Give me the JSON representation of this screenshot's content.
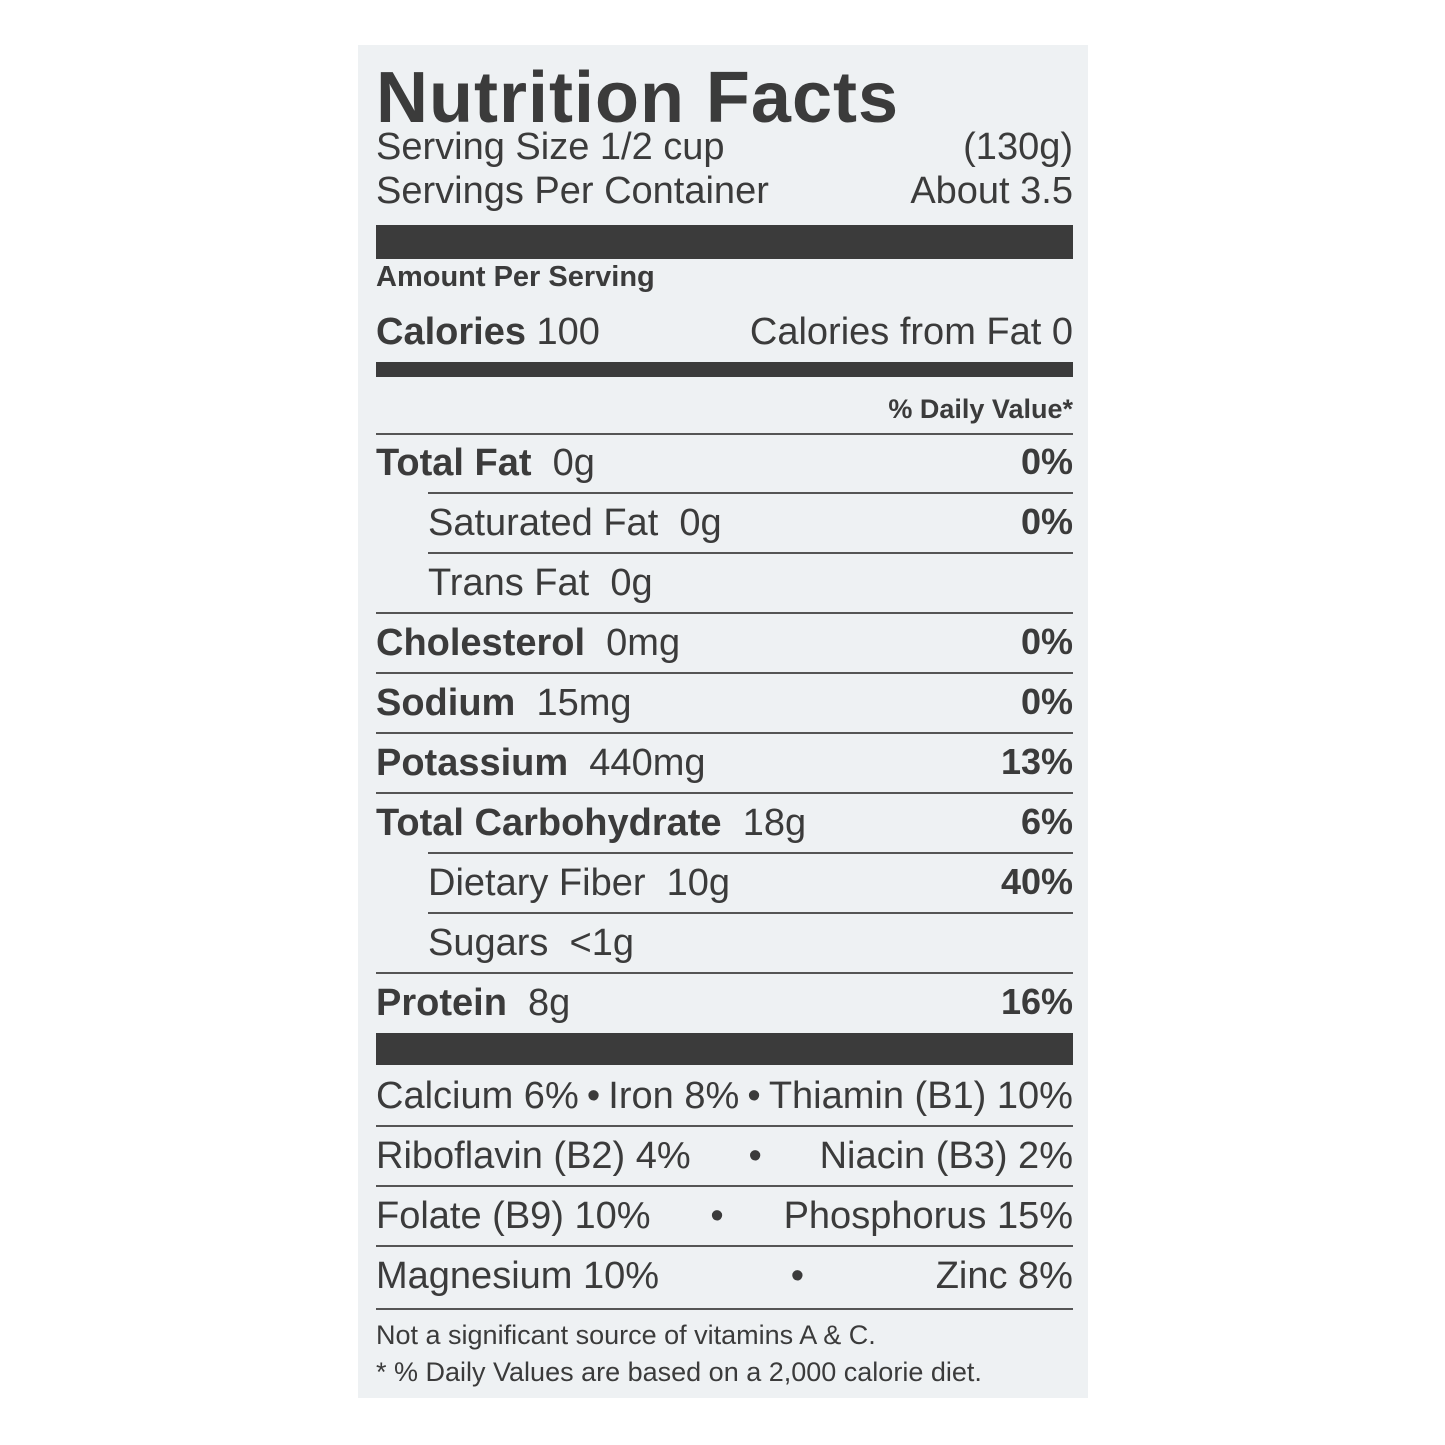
{
  "title": "Nutrition Facts",
  "serving": [
    {
      "label": "Serving Size 1/2 cup",
      "value": "(130g)"
    },
    {
      "label": "Servings Per Container",
      "value": "About 3.5"
    }
  ],
  "amount_per_serving": "Amount Per Serving",
  "calories": {
    "label": "Calories",
    "value": "100",
    "from_fat": "Calories from Fat 0"
  },
  "daily_value_header": "% Daily Value*",
  "nutrients": [
    {
      "name": "Total Fat",
      "amount": "0g",
      "dv": "0%"
    },
    {
      "name": "Saturated Fat",
      "amount": "0g",
      "dv": "0%",
      "sub": true
    },
    {
      "name": "Trans Fat",
      "amount": "0g",
      "sub": true
    },
    {
      "name": "Cholesterol",
      "amount": "0mg",
      "dv": "0%"
    },
    {
      "name": "Sodium",
      "amount": "15mg",
      "dv": "0%"
    },
    {
      "name": "Potassium",
      "amount": "440mg",
      "dv": "13%"
    },
    {
      "name": "Total Carbohydrate",
      "amount": "18g",
      "dv": "6%"
    },
    {
      "name": "Dietary Fiber",
      "amount": "10g",
      "dv": "40%",
      "sub": true
    },
    {
      "name": "Sugars",
      "amount": "<1g",
      "sub": true
    },
    {
      "name": "Protein",
      "amount": "8g",
      "dv": "16%"
    }
  ],
  "vitamins": {
    "separator": "•",
    "rows": [
      [
        "Calcium 6%",
        "Iron 8%",
        "Thiamin (B1) 10%"
      ],
      [
        "Riboflavin (B2) 4%",
        "Niacin (B3) 2%"
      ],
      [
        "Folate (B9) 10%",
        "Phosphorus 15%"
      ],
      [
        "Magnesium 10%",
        "Zinc 8%"
      ]
    ]
  },
  "footnotes": [
    "Not a significant source of vitamins A & C.",
    "* % Daily Values are based on a 2,000 calorie diet."
  ]
}
